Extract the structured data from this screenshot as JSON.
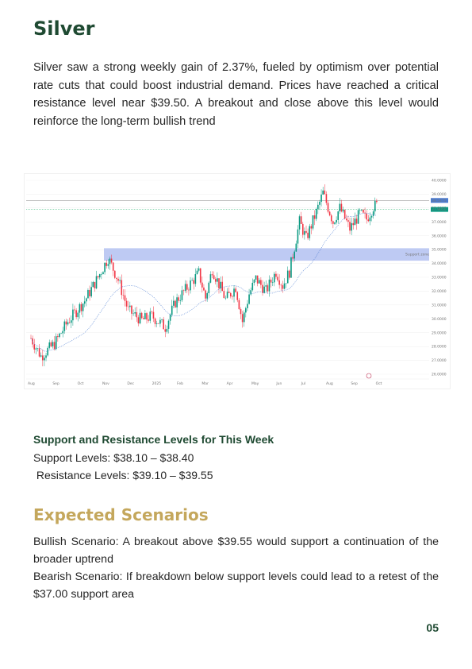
{
  "page": {
    "title": "Silver",
    "intro": "Silver saw a strong weekly gain of 2.37%, fueled by optimism over potential rate cuts that could boost industrial demand. Prices have reached a critical resistance level near $39.50. A breakout and close above this level would reinforce the long-term bullish trend",
    "levels_heading": "Support and Resistance Levels for This Week",
    "support_levels": "Support Levels: $38.10 – $38.40",
    "resistance_levels": " Resistance Levels: $39.10 – $39.55",
    "scenarios_title": "Expected Scenarios",
    "bullish": "Bullish Scenario: A breakout above $39.55 would support a continuation of the broader uptrend",
    "bearish": "Bearish Scenario: If breakdown below support levels could lead to a retest of the $37.00 support area",
    "page_number": "05"
  },
  "chart_data": {
    "type": "candlestick",
    "zone_label": "Support zone",
    "y_ticks": [
      "40.0000",
      "39.0000",
      "38.0000",
      "37.0000",
      "36.0000",
      "35.0000",
      "34.0000",
      "33.0000",
      "32.0000",
      "31.0000",
      "30.0000",
      "29.0000",
      "28.0000",
      "27.0000",
      "26.0000"
    ],
    "x_ticks": [
      "Aug",
      "Sep",
      "Oct",
      "Nov",
      "Dec",
      "2025",
      "Feb",
      "Mar",
      "Apr",
      "May",
      "Jun",
      "Jul",
      "Aug",
      "Sep",
      "Oct"
    ],
    "price_tags": [
      "38.5475",
      "37.9050"
    ],
    "support_zone": [
      34.2,
      35.1
    ],
    "colors": {
      "up": "#089981",
      "down": "#f23645",
      "zone": "#b7c4f2",
      "ma": "#4a7bd1"
    }
  }
}
